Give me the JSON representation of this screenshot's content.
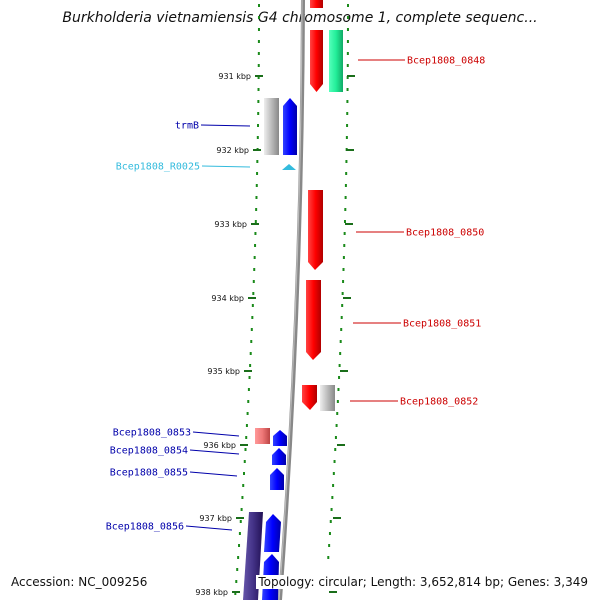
{
  "title": "Burkholderia vietnamiensis G4 chromosome 1, complete sequenc...",
  "footer": {
    "accession": "Accession: NC_009256",
    "topology": "Topology: circular; Length: 3,652,814 bp; Genes: 3,349"
  },
  "ticks": [
    "931 kbp",
    "932 kbp",
    "933 kbp",
    "934 kbp",
    "935 kbp",
    "936 kbp",
    "937 kbp",
    "938 kbp"
  ],
  "genes_right": [
    {
      "name": "Bcep1808_0848",
      "color": "#cc0000"
    },
    {
      "name": "Bcep1808_0850",
      "color": "#cc0000"
    },
    {
      "name": "Bcep1808_0851",
      "color": "#cc0000"
    },
    {
      "name": "Bcep1808_0852",
      "color": "#cc0000"
    }
  ],
  "genes_left": [
    {
      "name": "trmB",
      "color": "#0000aa"
    },
    {
      "name": "Bcep1808_R0025",
      "color": "#33bbdd"
    },
    {
      "name": "Bcep1808_0853",
      "color": "#0000aa"
    },
    {
      "name": "Bcep1808_0854",
      "color": "#0000aa"
    },
    {
      "name": "Bcep1808_0855",
      "color": "#0000aa"
    },
    {
      "name": "Bcep1808_0856",
      "color": "#0000aa"
    }
  ],
  "colors": {
    "forward_gene": "#ff0000",
    "reverse_gene": "#0000ff",
    "pseudo_gene": "#bbbbbb",
    "rna_gene": "#33bbdd",
    "cds_other": "#22ee99",
    "operon": "#443388",
    "backbone": "#888888",
    "tick": "#1a6e1a",
    "dots": "#1a8a1a"
  }
}
